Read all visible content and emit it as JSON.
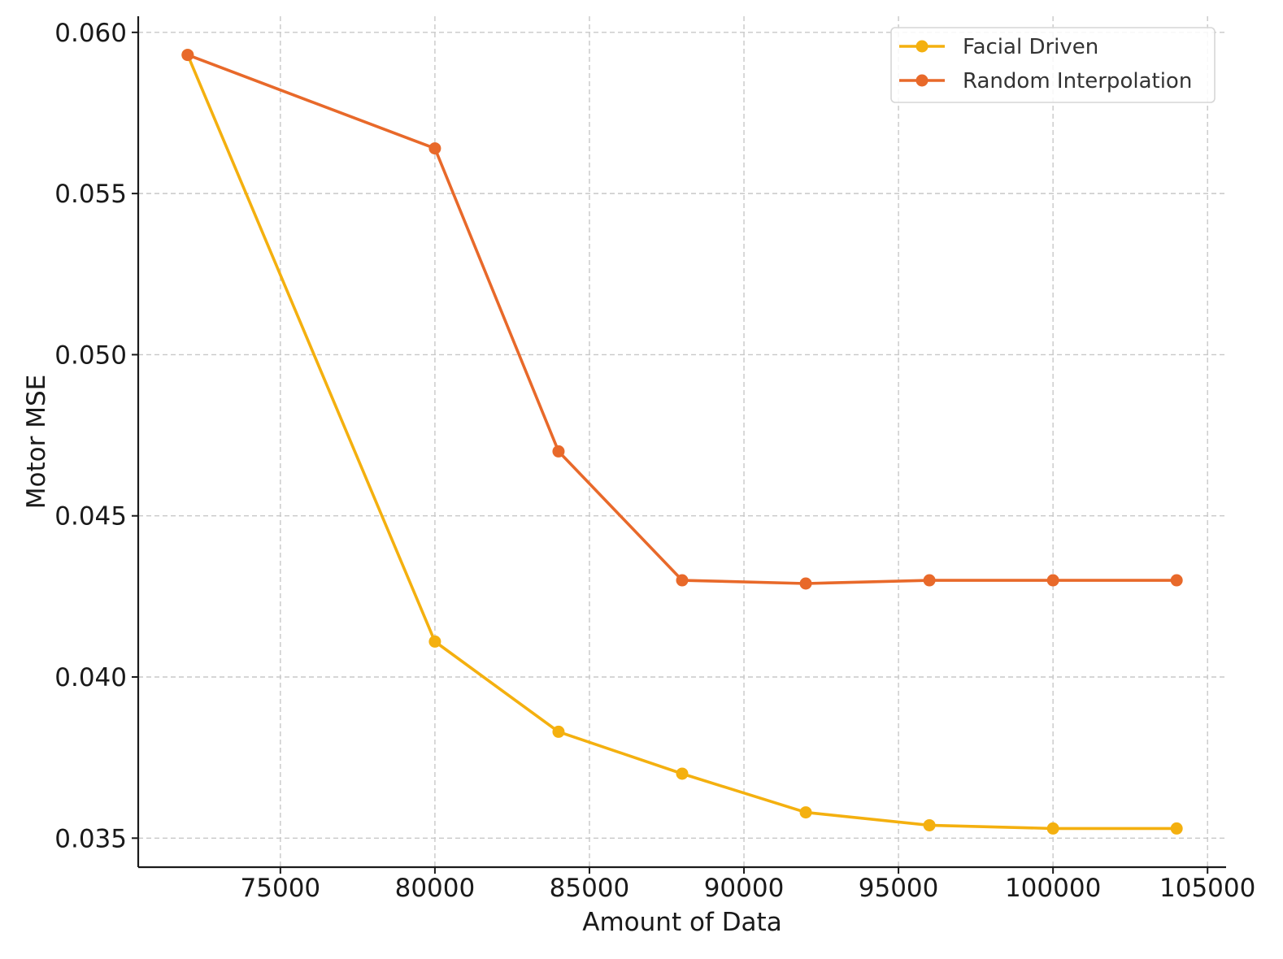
{
  "chart_data": {
    "type": "line",
    "title": "",
    "xlabel": "Amount of Data",
    "ylabel": "Motor MSE",
    "x": [
      72000,
      80000,
      84000,
      88000,
      92000,
      96000,
      100000,
      104000
    ],
    "xlim": [
      70400,
      105600
    ],
    "ylim": [
      0.0341,
      0.0605
    ],
    "xticks": [
      75000,
      80000,
      85000,
      90000,
      95000,
      100000,
      105000
    ],
    "xtick_labels": [
      "75000",
      "80000",
      "85000",
      "90000",
      "95000",
      "100000",
      "105000"
    ],
    "yticks": [
      0.035,
      0.04,
      0.045,
      0.05,
      0.055,
      0.06
    ],
    "ytick_labels": [
      "0.035",
      "0.040",
      "0.045",
      "0.050",
      "0.055",
      "0.060"
    ],
    "grid": true,
    "legend_position": "top-right",
    "series": [
      {
        "name": "Facial Driven",
        "color": "#f4b00f",
        "values": [
          0.0593,
          0.0411,
          0.0383,
          0.037,
          0.0358,
          0.0354,
          0.0353,
          0.0353
        ]
      },
      {
        "name": "Random Interpolation",
        "color": "#e8692a",
        "values": [
          0.0593,
          0.0564,
          0.047,
          0.043,
          0.0429,
          0.043,
          0.043,
          0.043
        ]
      }
    ]
  }
}
